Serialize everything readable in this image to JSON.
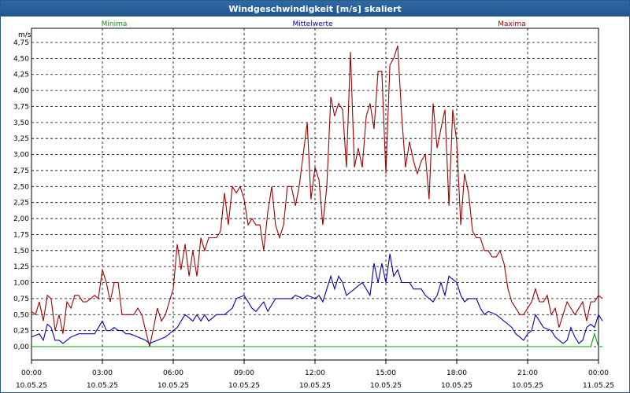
{
  "window": {
    "title": "Windgeschwindigkeit [m/s] skaliert"
  },
  "legend": {
    "min_label": "Minima",
    "avg_label": "Mittelwerte",
    "max_label": "Maxima"
  },
  "colors": {
    "min": "#00a000",
    "avg": "#0000b0",
    "max": "#a00000",
    "grid": "#000000"
  },
  "chart_data": {
    "type": "line",
    "title": "Windgeschwindigkeit [m/s] skaliert",
    "ylabel": "m/s",
    "xlabel": "",
    "ylim": [
      0,
      4.75
    ],
    "xlim_hours": [
      0,
      24
    ],
    "grid": true,
    "legend_placement": "top",
    "y_ticks": [
      "0,00",
      "0,25",
      "0,50",
      "0,75",
      "1,00",
      "1,25",
      "1,50",
      "1,75",
      "2,00",
      "2,25",
      "2,50",
      "2,75",
      "3,00",
      "3,25",
      "3,50",
      "3,75",
      "4,00",
      "4,25",
      "4,50",
      "4,75"
    ],
    "x_ticks": [
      {
        "time": "00:00",
        "date": "10.05.25"
      },
      {
        "time": "03:00",
        "date": "10.05.25"
      },
      {
        "time": "06:00",
        "date": "10.05.25"
      },
      {
        "time": "09:00",
        "date": "10.05.25"
      },
      {
        "time": "12:00",
        "date": "10.05.25"
      },
      {
        "time": "15:00",
        "date": "10.05.25"
      },
      {
        "time": "18:00",
        "date": "10.05.25"
      },
      {
        "time": "21:00",
        "date": "10.05.25"
      },
      {
        "time": "00:00",
        "date": "11.05.25"
      }
    ],
    "series": [
      {
        "name": "Maxima",
        "points": [
          [
            0.0,
            0.55
          ],
          [
            0.17,
            0.5
          ],
          [
            0.33,
            0.7
          ],
          [
            0.5,
            0.4
          ],
          [
            0.67,
            0.8
          ],
          [
            0.83,
            0.75
          ],
          [
            1.0,
            0.25
          ],
          [
            1.17,
            0.5
          ],
          [
            1.33,
            0.2
          ],
          [
            1.5,
            0.7
          ],
          [
            1.67,
            0.6
          ],
          [
            1.83,
            0.8
          ],
          [
            2.0,
            0.8
          ],
          [
            2.17,
            0.7
          ],
          [
            2.33,
            0.7
          ],
          [
            2.5,
            0.75
          ],
          [
            2.67,
            0.8
          ],
          [
            2.83,
            0.75
          ],
          [
            3.0,
            1.2
          ],
          [
            3.17,
            1.0
          ],
          [
            3.33,
            0.7
          ],
          [
            3.5,
            1.0
          ],
          [
            3.67,
            1.0
          ],
          [
            3.83,
            0.5
          ],
          [
            4.0,
            0.5
          ],
          [
            4.17,
            0.5
          ],
          [
            4.33,
            0.5
          ],
          [
            4.5,
            0.6
          ],
          [
            4.67,
            0.5
          ],
          [
            4.83,
            0.25
          ],
          [
            5.0,
            0.0
          ],
          [
            5.17,
            0.3
          ],
          [
            5.33,
            0.6
          ],
          [
            5.5,
            0.4
          ],
          [
            5.67,
            0.5
          ],
          [
            5.83,
            0.7
          ],
          [
            6.0,
            0.9
          ],
          [
            6.17,
            1.6
          ],
          [
            6.33,
            1.2
          ],
          [
            6.5,
            1.6
          ],
          [
            6.67,
            1.1
          ],
          [
            6.83,
            1.5
          ],
          [
            7.0,
            1.1
          ],
          [
            7.17,
            1.7
          ],
          [
            7.33,
            1.5
          ],
          [
            7.5,
            1.7
          ],
          [
            7.67,
            1.7
          ],
          [
            7.83,
            1.7
          ],
          [
            8.0,
            1.8
          ],
          [
            8.17,
            2.4
          ],
          [
            8.33,
            1.9
          ],
          [
            8.5,
            2.5
          ],
          [
            8.67,
            2.4
          ],
          [
            8.83,
            2.5
          ],
          [
            9.0,
            2.3
          ],
          [
            9.17,
            1.9
          ],
          [
            9.33,
            2.0
          ],
          [
            9.5,
            1.9
          ],
          [
            9.67,
            1.9
          ],
          [
            9.83,
            1.5
          ],
          [
            10.0,
            2.1
          ],
          [
            10.17,
            2.5
          ],
          [
            10.33,
            1.9
          ],
          [
            10.5,
            1.7
          ],
          [
            10.67,
            1.9
          ],
          [
            10.83,
            2.5
          ],
          [
            11.0,
            2.5
          ],
          [
            11.17,
            2.2
          ],
          [
            11.33,
            2.5
          ],
          [
            11.5,
            3.0
          ],
          [
            11.67,
            3.5
          ],
          [
            11.83,
            2.3
          ],
          [
            12.0,
            2.8
          ],
          [
            12.17,
            2.6
          ],
          [
            12.33,
            1.9
          ],
          [
            12.5,
            2.5
          ],
          [
            12.67,
            3.9
          ],
          [
            12.83,
            3.6
          ],
          [
            13.0,
            3.8
          ],
          [
            13.17,
            3.7
          ],
          [
            13.33,
            2.8
          ],
          [
            13.5,
            4.6
          ],
          [
            13.67,
            2.8
          ],
          [
            13.83,
            3.1
          ],
          [
            14.0,
            2.8
          ],
          [
            14.17,
            3.6
          ],
          [
            14.33,
            3.8
          ],
          [
            14.5,
            3.4
          ],
          [
            14.67,
            4.3
          ],
          [
            14.83,
            4.3
          ],
          [
            15.0,
            2.7
          ],
          [
            15.17,
            4.4
          ],
          [
            15.33,
            4.5
          ],
          [
            15.5,
            4.7
          ],
          [
            15.67,
            3.6
          ],
          [
            15.83,
            2.8
          ],
          [
            16.0,
            3.2
          ],
          [
            16.17,
            2.9
          ],
          [
            16.33,
            2.7
          ],
          [
            16.5,
            2.9
          ],
          [
            16.67,
            3.0
          ],
          [
            16.83,
            2.3
          ],
          [
            17.0,
            3.8
          ],
          [
            17.17,
            3.1
          ],
          [
            17.33,
            3.4
          ],
          [
            17.5,
            3.7
          ],
          [
            17.67,
            2.2
          ],
          [
            17.83,
            3.7
          ],
          [
            18.0,
            3.2
          ],
          [
            18.17,
            1.9
          ],
          [
            18.33,
            2.7
          ],
          [
            18.5,
            2.4
          ],
          [
            18.67,
            1.8
          ],
          [
            18.83,
            1.7
          ],
          [
            19.0,
            1.7
          ],
          [
            19.17,
            1.5
          ],
          [
            19.33,
            1.5
          ],
          [
            19.5,
            1.4
          ],
          [
            19.67,
            1.4
          ],
          [
            19.83,
            1.5
          ],
          [
            20.0,
            1.3
          ],
          [
            20.17,
            0.9
          ],
          [
            20.33,
            0.7
          ],
          [
            20.5,
            0.6
          ],
          [
            20.67,
            0.5
          ],
          [
            20.83,
            0.5
          ],
          [
            21.0,
            0.6
          ],
          [
            21.17,
            0.7
          ],
          [
            21.33,
            0.9
          ],
          [
            21.5,
            0.7
          ],
          [
            21.67,
            0.7
          ],
          [
            21.83,
            0.8
          ],
          [
            22.0,
            0.5
          ],
          [
            22.17,
            0.6
          ],
          [
            22.33,
            0.3
          ],
          [
            22.5,
            0.5
          ],
          [
            22.67,
            0.7
          ],
          [
            22.83,
            0.6
          ],
          [
            23.0,
            0.5
          ],
          [
            23.17,
            0.6
          ],
          [
            23.33,
            0.7
          ],
          [
            23.5,
            0.4
          ],
          [
            23.67,
            0.7
          ],
          [
            23.83,
            0.7
          ],
          [
            24.0,
            0.8
          ],
          [
            24.17,
            0.75
          ]
        ]
      },
      {
        "name": "Mittelwerte",
        "points": [
          [
            0.0,
            0.15
          ],
          [
            0.33,
            0.2
          ],
          [
            0.5,
            0.1
          ],
          [
            0.67,
            0.35
          ],
          [
            0.83,
            0.3
          ],
          [
            1.0,
            0.1
          ],
          [
            1.17,
            0.1
          ],
          [
            1.33,
            0.05
          ],
          [
            1.5,
            0.1
          ],
          [
            1.67,
            0.15
          ],
          [
            2.0,
            0.2
          ],
          [
            2.33,
            0.2
          ],
          [
            2.67,
            0.2
          ],
          [
            3.0,
            0.4
          ],
          [
            3.17,
            0.25
          ],
          [
            3.33,
            0.25
          ],
          [
            3.5,
            0.3
          ],
          [
            3.67,
            0.25
          ],
          [
            3.83,
            0.25
          ],
          [
            4.0,
            0.2
          ],
          [
            4.17,
            0.2
          ],
          [
            4.5,
            0.15
          ],
          [
            4.83,
            0.1
          ],
          [
            5.0,
            0.05
          ],
          [
            5.33,
            0.1
          ],
          [
            5.67,
            0.15
          ],
          [
            6.0,
            0.25
          ],
          [
            6.17,
            0.3
          ],
          [
            6.33,
            0.4
          ],
          [
            6.5,
            0.5
          ],
          [
            6.67,
            0.45
          ],
          [
            6.83,
            0.4
          ],
          [
            7.0,
            0.5
          ],
          [
            7.17,
            0.4
          ],
          [
            7.33,
            0.5
          ],
          [
            7.5,
            0.4
          ],
          [
            7.83,
            0.5
          ],
          [
            8.17,
            0.5
          ],
          [
            8.5,
            0.6
          ],
          [
            8.67,
            0.75
          ],
          [
            9.0,
            0.8
          ],
          [
            9.17,
            0.7
          ],
          [
            9.33,
            0.6
          ],
          [
            9.5,
            0.55
          ],
          [
            9.83,
            0.7
          ],
          [
            10.0,
            0.55
          ],
          [
            10.33,
            0.75
          ],
          [
            10.67,
            0.75
          ],
          [
            11.0,
            0.75
          ],
          [
            11.17,
            0.8
          ],
          [
            11.5,
            0.75
          ],
          [
            11.67,
            0.8
          ],
          [
            12.0,
            0.75
          ],
          [
            12.17,
            0.8
          ],
          [
            12.33,
            0.7
          ],
          [
            12.5,
            0.9
          ],
          [
            12.67,
            1.1
          ],
          [
            12.83,
            0.9
          ],
          [
            13.0,
            1.1
          ],
          [
            13.17,
            1.0
          ],
          [
            13.33,
            0.8
          ],
          [
            13.67,
            0.9
          ],
          [
            14.0,
            1.0
          ],
          [
            14.17,
            0.9
          ],
          [
            14.33,
            0.8
          ],
          [
            14.5,
            1.3
          ],
          [
            14.67,
            1.0
          ],
          [
            14.83,
            1.3
          ],
          [
            15.0,
            1.0
          ],
          [
            15.17,
            1.45
          ],
          [
            15.33,
            1.1
          ],
          [
            15.5,
            1.2
          ],
          [
            15.67,
            1.0
          ],
          [
            16.0,
            1.0
          ],
          [
            16.17,
            0.9
          ],
          [
            16.5,
            0.9
          ],
          [
            16.67,
            0.8
          ],
          [
            17.0,
            0.7
          ],
          [
            17.17,
            0.8
          ],
          [
            17.33,
            1.0
          ],
          [
            17.5,
            0.8
          ],
          [
            17.67,
            1.1
          ],
          [
            18.0,
            1.0
          ],
          [
            18.17,
            0.8
          ],
          [
            18.33,
            0.7
          ],
          [
            18.5,
            0.75
          ],
          [
            18.83,
            0.75
          ],
          [
            19.0,
            0.6
          ],
          [
            19.17,
            0.5
          ],
          [
            19.33,
            0.55
          ],
          [
            19.67,
            0.5
          ],
          [
            20.0,
            0.4
          ],
          [
            20.17,
            0.35
          ],
          [
            20.33,
            0.3
          ],
          [
            20.5,
            0.2
          ],
          [
            20.67,
            0.15
          ],
          [
            20.83,
            0.1
          ],
          [
            21.0,
            0.2
          ],
          [
            21.17,
            0.25
          ],
          [
            21.33,
            0.5
          ],
          [
            21.5,
            0.4
          ],
          [
            21.67,
            0.3
          ],
          [
            22.0,
            0.25
          ],
          [
            22.17,
            0.15
          ],
          [
            22.33,
            0.1
          ],
          [
            22.5,
            0.05
          ],
          [
            22.67,
            0.1
          ],
          [
            22.83,
            0.3
          ],
          [
            23.0,
            0.15
          ],
          [
            23.17,
            0.05
          ],
          [
            23.33,
            0.1
          ],
          [
            23.5,
            0.3
          ],
          [
            23.67,
            0.35
          ],
          [
            23.83,
            0.3
          ],
          [
            24.0,
            0.5
          ],
          [
            24.17,
            0.4
          ]
        ]
      },
      {
        "name": "Minima",
        "points": [
          [
            0.0,
            0.0
          ],
          [
            23.5,
            0.0
          ],
          [
            23.67,
            0.0
          ],
          [
            23.83,
            0.2
          ],
          [
            24.0,
            0.0
          ],
          [
            24.17,
            0.0
          ]
        ]
      }
    ]
  }
}
